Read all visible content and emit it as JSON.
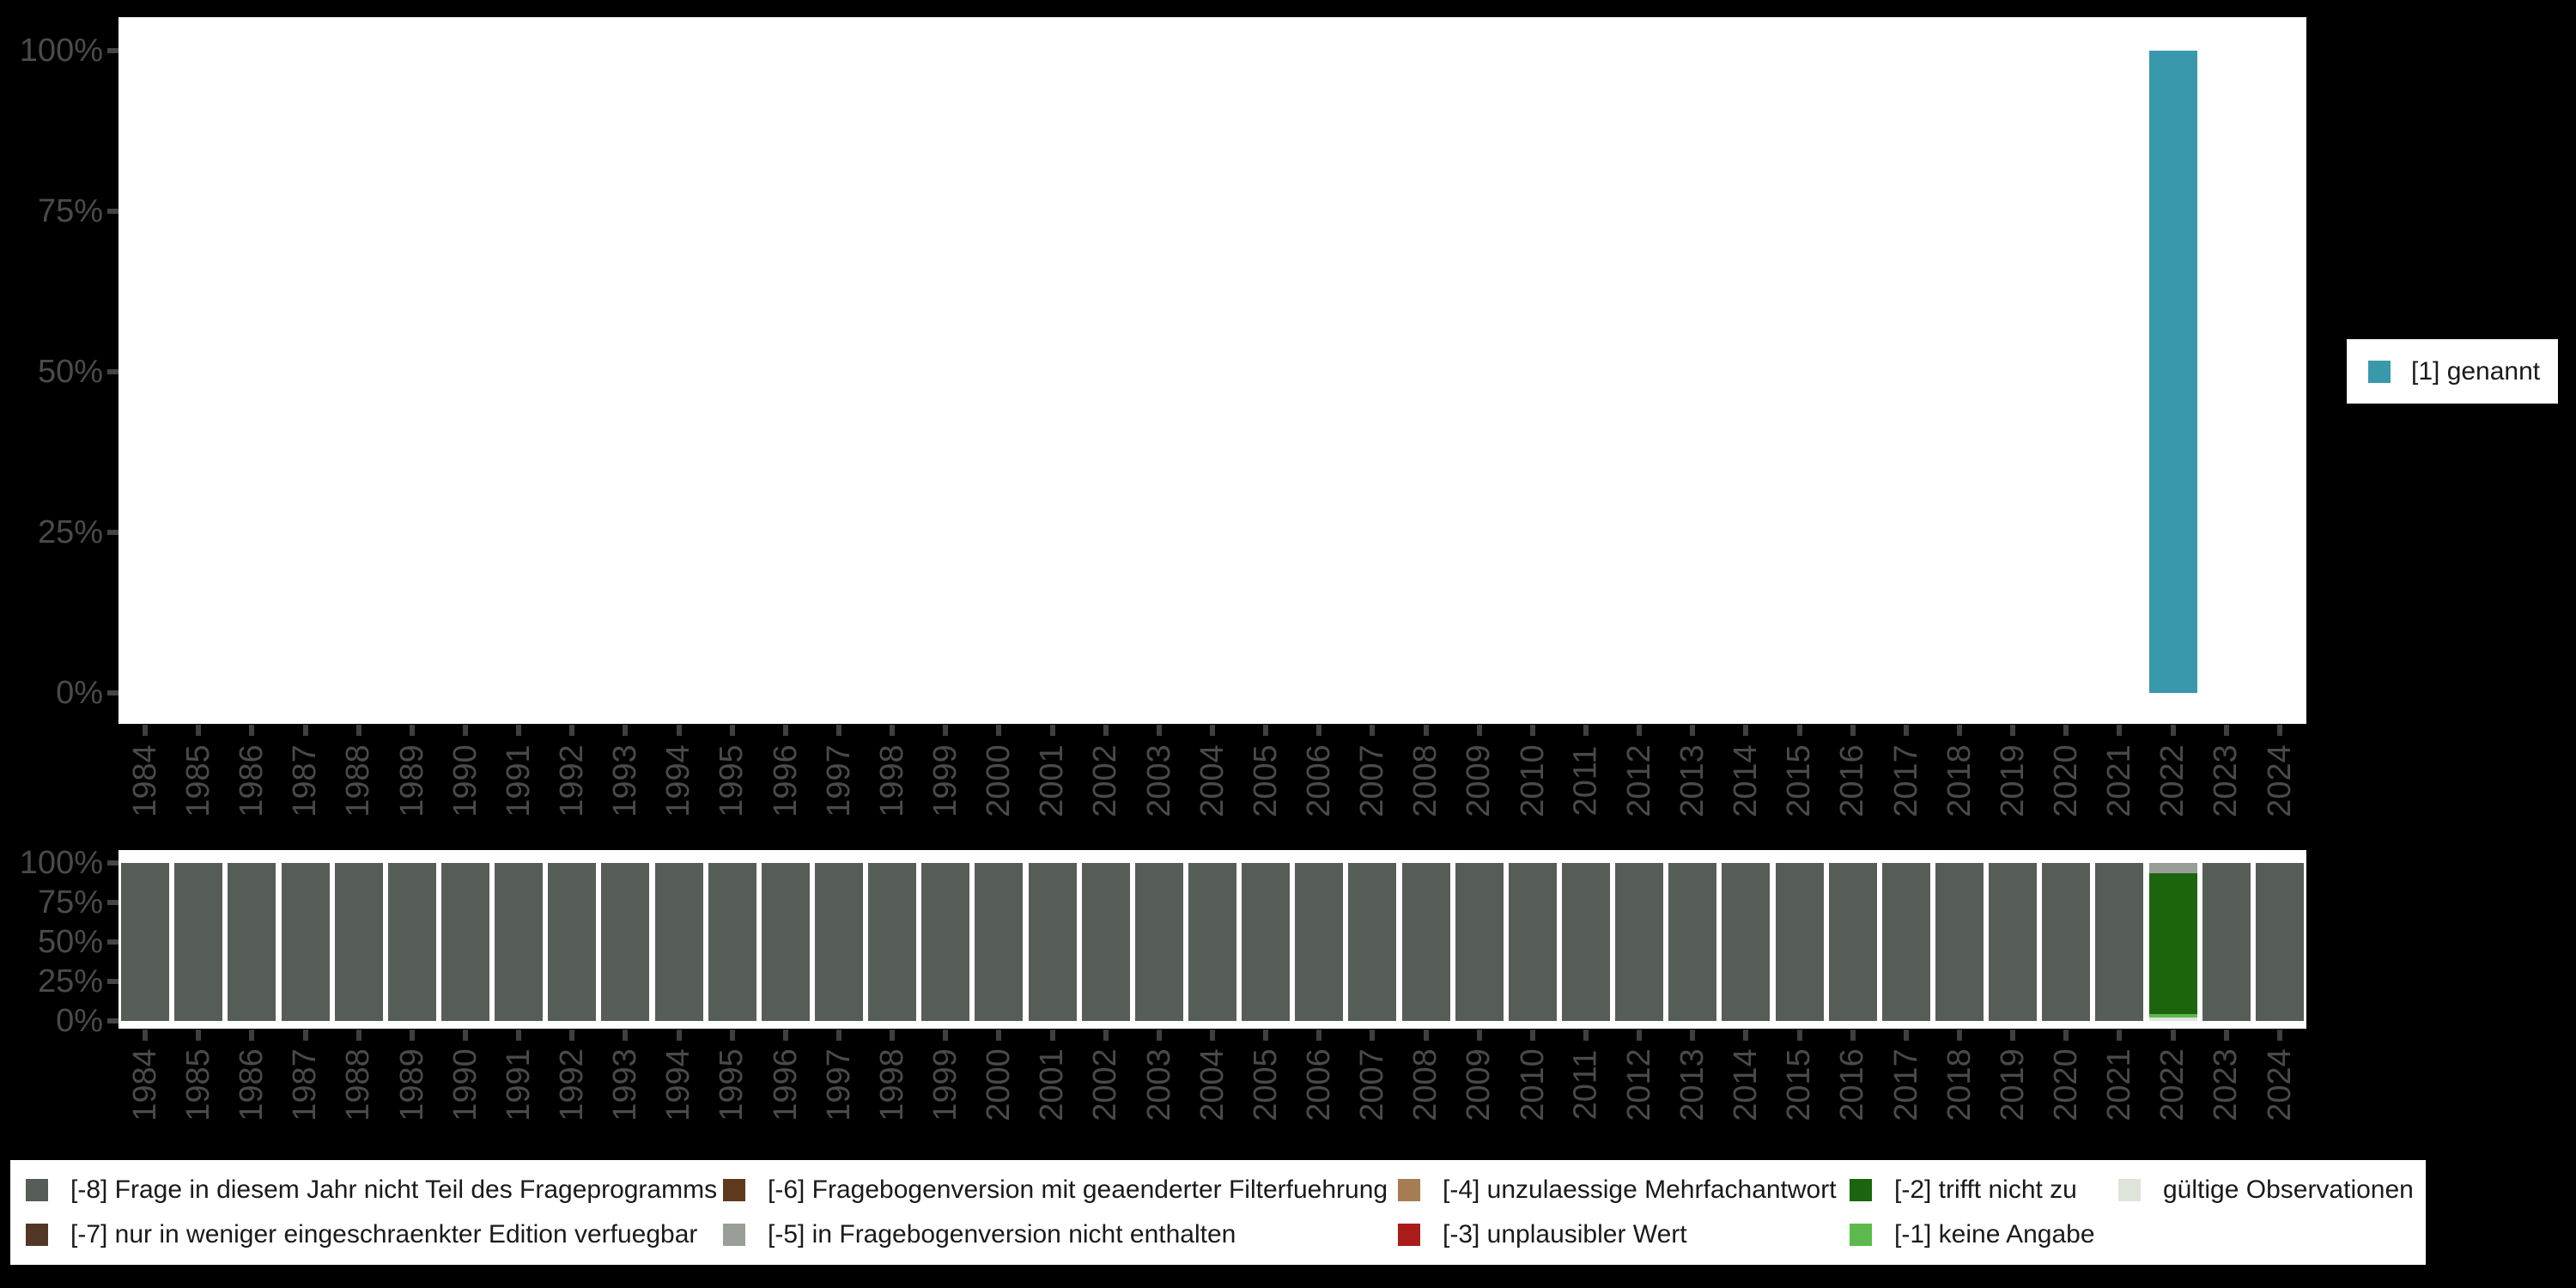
{
  "page": {
    "background": "#000000",
    "panel_color": "#ffffff"
  },
  "axis": {
    "ytick_labels": [
      "0%",
      "25%",
      "50%",
      "75%",
      "100%"
    ],
    "label_color": "#4a4a4a"
  },
  "right_legend": {
    "label": "[1] genannt",
    "color": "#3998ac"
  },
  "bottom_legend_title": "",
  "chart_data": [
    {
      "type": "bar",
      "title": "",
      "xlabel": "",
      "ylabel": "",
      "x": [
        1984,
        1985,
        1986,
        1987,
        1988,
        1989,
        1990,
        1991,
        1992,
        1993,
        1994,
        1995,
        1996,
        1997,
        1998,
        1999,
        2000,
        2001,
        2002,
        2003,
        2004,
        2005,
        2006,
        2007,
        2008,
        2009,
        2010,
        2011,
        2012,
        2013,
        2014,
        2015,
        2016,
        2017,
        2018,
        2019,
        2020,
        2021,
        2022,
        2023,
        2024
      ],
      "ylim": [
        0,
        100
      ],
      "ytick_labels": [
        "0%",
        "25%",
        "50%",
        "75%",
        "100%"
      ],
      "grid": false,
      "legend_position": "right",
      "series": [
        {
          "name": "[1] genannt",
          "color": "#3998ac",
          "values": [
            0,
            0,
            0,
            0,
            0,
            0,
            0,
            0,
            0,
            0,
            0,
            0,
            0,
            0,
            0,
            0,
            0,
            0,
            0,
            0,
            0,
            0,
            0,
            0,
            0,
            0,
            0,
            0,
            0,
            0,
            0,
            0,
            0,
            0,
            0,
            0,
            0,
            0,
            100,
            0,
            0
          ]
        }
      ]
    },
    {
      "type": "bar",
      "stacked": true,
      "title": "",
      "xlabel": "",
      "ylabel": "",
      "x": [
        1984,
        1985,
        1986,
        1987,
        1988,
        1989,
        1990,
        1991,
        1992,
        1993,
        1994,
        1995,
        1996,
        1997,
        1998,
        1999,
        2000,
        2001,
        2002,
        2003,
        2004,
        2005,
        2006,
        2007,
        2008,
        2009,
        2010,
        2011,
        2012,
        2013,
        2014,
        2015,
        2016,
        2017,
        2018,
        2019,
        2020,
        2021,
        2022,
        2023,
        2024
      ],
      "ylim": [
        0,
        100
      ],
      "ytick_labels": [
        "0%",
        "25%",
        "50%",
        "75%",
        "100%"
      ],
      "grid": false,
      "legend_position": "bottom",
      "series": [
        {
          "name": "[-8] Frage in diesem Jahr nicht Teil des Frageprogramms",
          "color": "#565d56",
          "values": [
            100,
            100,
            100,
            100,
            100,
            100,
            100,
            100,
            100,
            100,
            100,
            100,
            100,
            100,
            100,
            100,
            100,
            100,
            100,
            100,
            100,
            100,
            100,
            100,
            100,
            100,
            100,
            100,
            100,
            100,
            100,
            100,
            100,
            100,
            100,
            100,
            100,
            100,
            0,
            100,
            100
          ]
        },
        {
          "name": "[-7] nur in weniger eingeschraenkter Edition verfuegbar",
          "color": "#533726",
          "values": [
            0,
            0,
            0,
            0,
            0,
            0,
            0,
            0,
            0,
            0,
            0,
            0,
            0,
            0,
            0,
            0,
            0,
            0,
            0,
            0,
            0,
            0,
            0,
            0,
            0,
            0,
            0,
            0,
            0,
            0,
            0,
            0,
            0,
            0,
            0,
            0,
            0,
            0,
            0,
            0,
            0
          ]
        },
        {
          "name": "[-6] Fragebogenversion mit geaenderter Filterfuehrung",
          "color": "#5e3a1b",
          "values": [
            0,
            0,
            0,
            0,
            0,
            0,
            0,
            0,
            0,
            0,
            0,
            0,
            0,
            0,
            0,
            0,
            0,
            0,
            0,
            0,
            0,
            0,
            0,
            0,
            0,
            0,
            0,
            0,
            0,
            0,
            0,
            0,
            0,
            0,
            0,
            0,
            0,
            0,
            0,
            0,
            0
          ]
        },
        {
          "name": "[-5] in Fragebogenversion nicht enthalten",
          "color": "#9a9e98",
          "values": [
            0,
            0,
            0,
            0,
            0,
            0,
            0,
            0,
            0,
            0,
            0,
            0,
            0,
            0,
            0,
            0,
            0,
            0,
            0,
            0,
            0,
            0,
            0,
            0,
            0,
            0,
            0,
            0,
            0,
            0,
            0,
            0,
            0,
            0,
            0,
            0,
            0,
            0,
            6.5,
            0,
            0
          ]
        },
        {
          "name": "[-4] unzulaessige Mehrfachantwort",
          "color": "#a57d52",
          "values": [
            0,
            0,
            0,
            0,
            0,
            0,
            0,
            0,
            0,
            0,
            0,
            0,
            0,
            0,
            0,
            0,
            0,
            0,
            0,
            0,
            0,
            0,
            0,
            0,
            0,
            0,
            0,
            0,
            0,
            0,
            0,
            0,
            0,
            0,
            0,
            0,
            0,
            0,
            0,
            0,
            0
          ]
        },
        {
          "name": "[-3] unplausibler Wert",
          "color": "#aa1c19",
          "values": [
            0,
            0,
            0,
            0,
            0,
            0,
            0,
            0,
            0,
            0,
            0,
            0,
            0,
            0,
            0,
            0,
            0,
            0,
            0,
            0,
            0,
            0,
            0,
            0,
            0,
            0,
            0,
            0,
            0,
            0,
            0,
            0,
            0,
            0,
            0,
            0,
            0,
            0,
            0,
            0,
            0
          ]
        },
        {
          "name": "[-2] trifft nicht zu",
          "color": "#1c640e",
          "values": [
            0,
            0,
            0,
            0,
            0,
            0,
            0,
            0,
            0,
            0,
            0,
            0,
            0,
            0,
            0,
            0,
            0,
            0,
            0,
            0,
            0,
            0,
            0,
            0,
            0,
            0,
            0,
            0,
            0,
            0,
            0,
            0,
            0,
            0,
            0,
            0,
            0,
            0,
            89,
            0,
            0
          ]
        },
        {
          "name": "[-1] keine Angabe",
          "color": "#5cba4c",
          "values": [
            0,
            0,
            0,
            0,
            0,
            0,
            0,
            0,
            0,
            0,
            0,
            0,
            0,
            0,
            0,
            0,
            0,
            0,
            0,
            0,
            0,
            0,
            0,
            0,
            0,
            0,
            0,
            0,
            0,
            0,
            0,
            0,
            0,
            0,
            0,
            0,
            0,
            0,
            2.5,
            0,
            0
          ]
        },
        {
          "name": "gültige Observationen",
          "color": "#dfe4db",
          "values": [
            0,
            0,
            0,
            0,
            0,
            0,
            0,
            0,
            0,
            0,
            0,
            0,
            0,
            0,
            0,
            0,
            0,
            0,
            0,
            0,
            0,
            0,
            0,
            0,
            0,
            0,
            0,
            0,
            0,
            0,
            0,
            0,
            0,
            0,
            0,
            0,
            0,
            0,
            2,
            0,
            0
          ]
        }
      ]
    }
  ]
}
